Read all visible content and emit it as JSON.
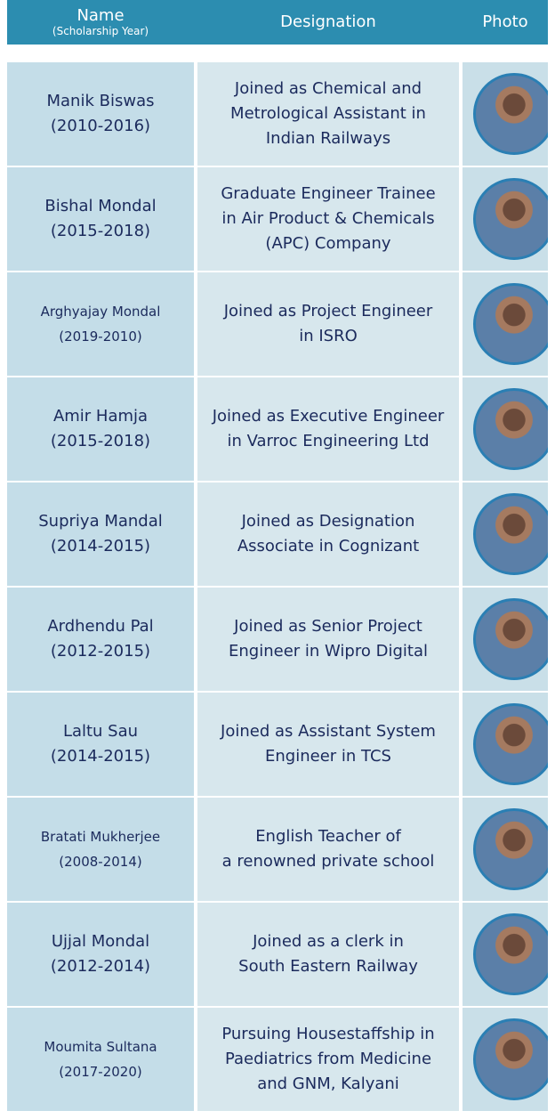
{
  "table": {
    "header": {
      "name": "Name",
      "name_sub": "(Scholarship Year)",
      "designation": "Designation",
      "photo": "Photo"
    },
    "rows": [
      {
        "name": [
          "Manik Biswas",
          "(2010-2016)"
        ],
        "designation": [
          "Joined as Chemical and",
          "Metrological Assistant in",
          "Indian Railways"
        ]
      },
      {
        "name": [
          "Bishal Mondal",
          "(2015-2018)"
        ],
        "designation": [
          "Graduate Engineer Trainee",
          "in Air Product & Chemicals",
          "(APC) Company"
        ]
      },
      {
        "name": [
          "Arghyajay Mondal",
          "(2019-2010)"
        ],
        "designation": [
          "Joined as Project Engineer",
          "in ISRO"
        ]
      },
      {
        "name": [
          "Amir Hamja",
          "(2015-2018)"
        ],
        "designation": [
          "Joined as Executive Engineer",
          "in Varroc Engineering Ltd"
        ]
      },
      {
        "name": [
          "Supriya Mandal",
          "(2014-2015)"
        ],
        "designation": [
          "Joined as Designation",
          "Associate in Cognizant"
        ]
      },
      {
        "name": [
          "Ardhendu Pal",
          "(2012-2015)"
        ],
        "designation": [
          "Joined as Senior Project",
          "Engineer in Wipro Digital"
        ]
      },
      {
        "name": [
          "Laltu Sau",
          "(2014-2015)"
        ],
        "designation": [
          "Joined as Assistant System",
          "Engineer in TCS"
        ]
      },
      {
        "name": [
          "Bratati Mukherjee",
          "(2008-2014)"
        ],
        "designation": [
          "English Teacher of",
          "a renowned private school"
        ]
      },
      {
        "name": [
          "Ujjal Mondal",
          "(2012-2014)"
        ],
        "designation": [
          "Joined as a clerk in",
          "South Eastern Railway"
        ]
      },
      {
        "name": [
          "Moumita Sultana",
          "(2017-2020)"
        ],
        "designation": [
          "Pursuing Housestaffship in",
          "Paediatrics  from Medicine",
          "and GNM, Kalyani"
        ]
      }
    ]
  }
}
